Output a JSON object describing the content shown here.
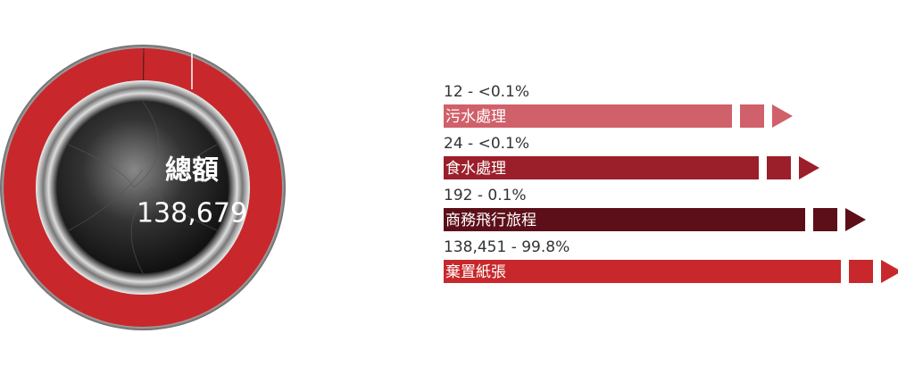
{
  "chart_data": {
    "type": "donut",
    "center_label": "總額",
    "total": {
      "value": 138679,
      "label": "138,679"
    },
    "categories": [
      "污水處理",
      "食水處理",
      "商務飛行旅程",
      "棄置紙張"
    ],
    "values": [
      12,
      24,
      192,
      138451
    ],
    "value_labels": [
      "12 - <0.1%",
      "24 - <0.1%",
      "192 - 0.1%",
      "138,451 - 99.8%"
    ],
    "colors": [
      "#d0606a",
      "#9b1f2a",
      "#5c0f18",
      "#c8282b"
    ]
  }
}
